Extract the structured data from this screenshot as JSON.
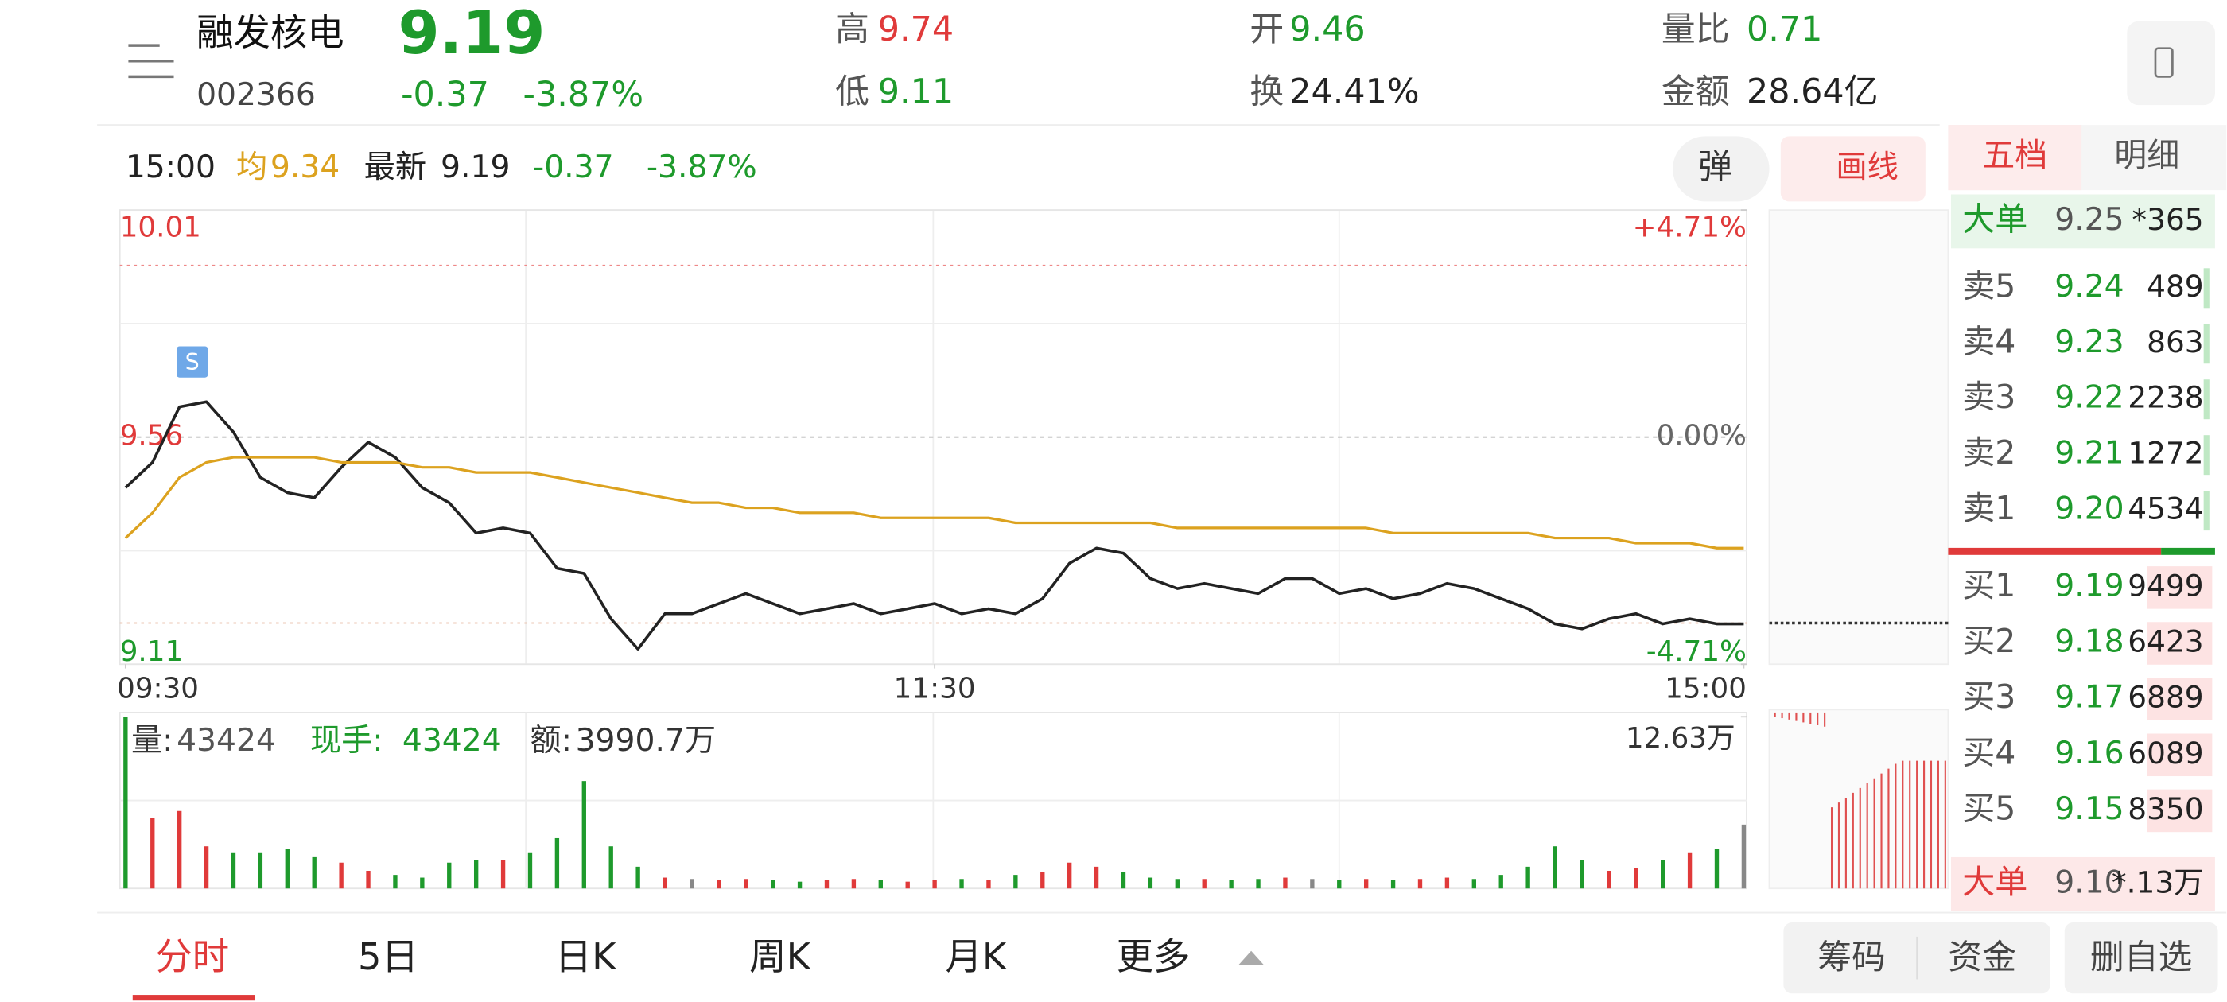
{
  "header": {
    "name": "融发核电",
    "code": "002366",
    "price": "9.19",
    "change": "-0.37",
    "change_pct": "-3.87%",
    "high": {
      "label": "高",
      "value": "9.74"
    },
    "low": {
      "label": "低",
      "value": "9.11"
    },
    "open": {
      "label": "开",
      "value": "9.46"
    },
    "turnover": {
      "label": "换",
      "value": "24.41%"
    },
    "volume_ratio": {
      "label": "量比",
      "value": "0.71"
    },
    "amount": {
      "label": "金额",
      "value": "28.64亿"
    }
  },
  "quote_bar": {
    "time": "15:00",
    "avg_label": "均",
    "avg": "9.34",
    "latest_label": "最新",
    "latest": "9.19",
    "change": "-0.37",
    "change_pct": "-3.87%",
    "danmaku": "弹",
    "draw": "画线"
  },
  "book": {
    "tabs": [
      "五档",
      "明细"
    ],
    "big_sell": {
      "label": "大单",
      "price": "9.25",
      "qty": "*365"
    },
    "asks": [
      {
        "label": "卖5",
        "price": "9.24",
        "qty": "489"
      },
      {
        "label": "卖4",
        "price": "9.23",
        "qty": "863"
      },
      {
        "label": "卖3",
        "price": "9.22",
        "qty": "2238"
      },
      {
        "label": "卖2",
        "price": "9.21",
        "qty": "1272"
      },
      {
        "label": "卖1",
        "price": "9.20",
        "qty": "4534"
      }
    ],
    "bids": [
      {
        "label": "买1",
        "price": "9.19",
        "qty": "9499"
      },
      {
        "label": "买2",
        "price": "9.18",
        "qty": "6423"
      },
      {
        "label": "买3",
        "price": "9.17",
        "qty": "6889"
      },
      {
        "label": "买4",
        "price": "9.16",
        "qty": "6089"
      },
      {
        "label": "买5",
        "price": "9.15",
        "qty": "8350"
      }
    ],
    "big_buy": {
      "label": "大单",
      "price": "9.10",
      "qty": "*.13万"
    }
  },
  "bottom_tabs": [
    "分时",
    "5日",
    "日K",
    "周K",
    "月K",
    "更多"
  ],
  "bottom_buttons": [
    "筹码",
    "资金",
    "删自选"
  ],
  "chart_data": [
    {
      "type": "line",
      "markers": [
        "S"
      ],
      "x": [
        0,
        4,
        8,
        12,
        16,
        20,
        24,
        28,
        32,
        36,
        40,
        44,
        48,
        52,
        56,
        60,
        64,
        68,
        72,
        76,
        80,
        84,
        88,
        92,
        96,
        100,
        104,
        108,
        112,
        116,
        120,
        124,
        128,
        132,
        136,
        140,
        144,
        148,
        152,
        156,
        160,
        164,
        168,
        172,
        176,
        180,
        184,
        188,
        192,
        196,
        200,
        204,
        208,
        212,
        216,
        220,
        224,
        228,
        232,
        236,
        240
      ],
      "xlim": [
        0,
        240
      ],
      "xticks": [
        {
          "value": 0,
          "label": "09:30"
        },
        {
          "value": 120,
          "label": "11:30"
        },
        {
          "value": 240,
          "label": "15:00"
        }
      ],
      "ylim": [
        9.11,
        10.01
      ],
      "yticks": [
        10.01,
        9.56,
        9.11
      ],
      "y2lim": [
        -4.71,
        4.71
      ],
      "y2ticks": [
        {
          "value": 4.71,
          "label": "+4.71%"
        },
        {
          "value": 0,
          "label": "0.00%"
        },
        {
          "value": -4.71,
          "label": "-4.71%"
        }
      ],
      "series": [
        {
          "color": "#222222",
          "values": [
            9.46,
            9.51,
            9.62,
            9.63,
            9.57,
            9.48,
            9.45,
            9.44,
            9.5,
            9.55,
            9.52,
            9.46,
            9.43,
            9.37,
            9.38,
            9.37,
            9.3,
            9.29,
            9.2,
            9.14,
            9.21,
            9.21,
            9.23,
            9.25,
            9.23,
            9.21,
            9.22,
            9.23,
            9.21,
            9.22,
            9.23,
            9.21,
            9.22,
            9.21,
            9.24,
            9.31,
            9.34,
            9.33,
            9.28,
            9.26,
            9.27,
            9.26,
            9.25,
            9.28,
            9.28,
            9.25,
            9.26,
            9.24,
            9.25,
            9.27,
            9.26,
            9.24,
            9.22,
            9.19,
            9.18,
            9.2,
            9.21,
            9.19,
            9.2,
            9.19,
            9.19
          ]
        },
        {
          "color": "#dca21f",
          "values": [
            9.36,
            9.41,
            9.48,
            9.51,
            9.52,
            9.52,
            9.52,
            9.52,
            9.51,
            9.51,
            9.51,
            9.5,
            9.5,
            9.49,
            9.49,
            9.49,
            9.48,
            9.47,
            9.46,
            9.45,
            9.44,
            9.43,
            9.43,
            9.42,
            9.42,
            9.41,
            9.41,
            9.41,
            9.4,
            9.4,
            9.4,
            9.4,
            9.4,
            9.39,
            9.39,
            9.39,
            9.39,
            9.39,
            9.39,
            9.38,
            9.38,
            9.38,
            9.38,
            9.38,
            9.38,
            9.38,
            9.38,
            9.37,
            9.37,
            9.37,
            9.37,
            9.37,
            9.37,
            9.36,
            9.36,
            9.36,
            9.35,
            9.35,
            9.35,
            9.34,
            9.34
          ]
        }
      ]
    },
    {
      "type": "bar",
      "info": {
        "volume_label": "量:",
        "volume": "43424",
        "hand_label": "现手:",
        "hand": "43424",
        "amount_label": "额:",
        "amount": "3990.7万"
      },
      "x": [
        0,
        4,
        8,
        12,
        16,
        20,
        24,
        28,
        32,
        36,
        40,
        44,
        48,
        52,
        56,
        60,
        64,
        68,
        72,
        76,
        80,
        84,
        88,
        92,
        96,
        100,
        104,
        108,
        112,
        116,
        120,
        124,
        128,
        132,
        136,
        140,
        144,
        148,
        152,
        156,
        160,
        164,
        168,
        172,
        176,
        180,
        184,
        188,
        192,
        196,
        200,
        204,
        208,
        212,
        216,
        220,
        224,
        228,
        232,
        236,
        240
      ],
      "xlim": [
        0,
        240
      ],
      "ylim": [
        0,
        126300
      ],
      "yticks": [
        {
          "value": 126300,
          "label": "12.63万"
        }
      ],
      "up_color": "#e03a3a",
      "down_color": "#1e9a2c",
      "values": [
        126300,
        52000,
        57000,
        31000,
        26000,
        26000,
        29000,
        23000,
        19000,
        13000,
        10000,
        8000,
        19000,
        21000,
        21000,
        26000,
        37000,
        79000,
        31000,
        16000,
        8000,
        7000,
        6000,
        7000,
        6000,
        5000,
        6000,
        7000,
        6000,
        5000,
        6000,
        7000,
        6000,
        10000,
        12000,
        19000,
        16000,
        12000,
        8000,
        7000,
        7000,
        6000,
        7000,
        8000,
        7000,
        6000,
        7000,
        6000,
        7000,
        8000,
        7000,
        10000,
        16000,
        31000,
        21000,
        13000,
        15000,
        21000,
        26000,
        29000,
        47000
      ]
    }
  ]
}
